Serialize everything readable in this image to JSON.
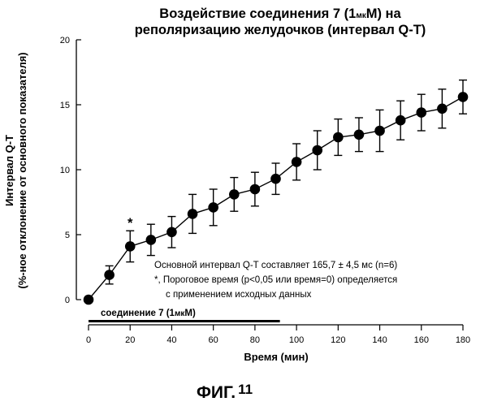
{
  "chart_data": {
    "type": "line",
    "title_line1": "Воздействие соединения 7 (1",
    "title_unit": "мк",
    "title_line1_end": "М) на",
    "title_line2": "реполяризацию желудочков (интервал Q-T)",
    "ylabel_line1": "Интервал Q-T",
    "ylabel_line2": "(%-ное отклонение от основного показателя)",
    "xlabel": "Время (мин)",
    "xlim": [
      0,
      180
    ],
    "ylim": [
      0,
      20
    ],
    "xticks": [
      0,
      20,
      40,
      60,
      80,
      100,
      120,
      140,
      160,
      180
    ],
    "yticks": [
      0,
      5,
      10,
      15,
      20
    ],
    "x": [
      0,
      10,
      20,
      30,
      40,
      50,
      60,
      70,
      80,
      90,
      100,
      110,
      120,
      130,
      140,
      150,
      160,
      170,
      180
    ],
    "y": [
      0,
      1.9,
      4.1,
      4.6,
      5.2,
      6.6,
      7.1,
      8.1,
      8.5,
      9.3,
      10.6,
      11.5,
      12.5,
      12.7,
      13.0,
      13.8,
      14.4,
      14.7,
      15.6
    ],
    "error": [
      0,
      0.7,
      1.2,
      1.2,
      1.2,
      1.5,
      1.4,
      1.3,
      1.3,
      1.2,
      1.4,
      1.5,
      1.4,
      1.3,
      1.6,
      1.5,
      1.4,
      1.5,
      1.3
    ],
    "significance_marker": {
      "x": 20,
      "symbol": "*"
    },
    "annotations": [
      "Основной интервал Q-T составляет 165,7 ± 4,5 мс (n=6)",
      "*, Пороговое время (p<0,05 или время=0) определяется",
      "с применением исходных данных"
    ],
    "compound_bar": {
      "label": "соединение 7 (1",
      "label_unit": "мк",
      "label_end": "М)",
      "x_start": 0,
      "x_end": 92
    },
    "grid": false,
    "legend": "none"
  },
  "figure_label": "ФИГ.",
  "figure_number": "11"
}
